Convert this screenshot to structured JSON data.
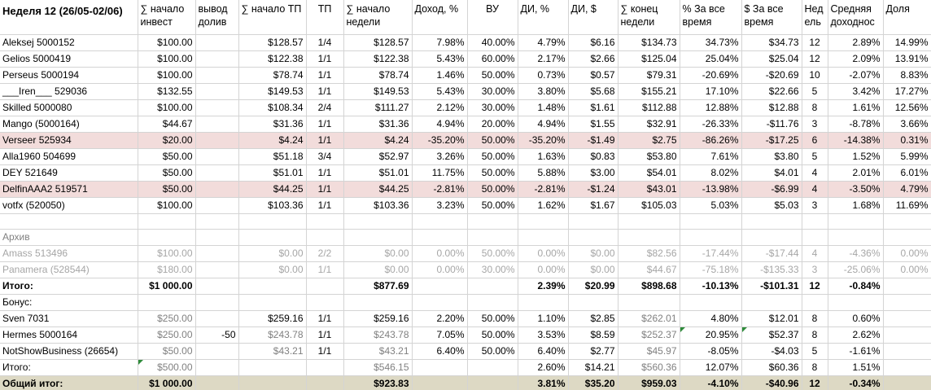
{
  "headers": [
    "Неделя 12 (26/05-02/06)",
    "∑ начало инвест",
    "вывод долив",
    "∑ начало ТП",
    "ТП",
    "∑ начало недели",
    "Доход, %",
    "ВУ",
    "ДИ, %",
    "ДИ, $",
    "∑ конец недели",
    "% За все время",
    "$ За все время",
    "Нед ель",
    "Средняя доходнос",
    "Доля"
  ],
  "rows": [
    [
      "Aleksej 5000152",
      "$100.00",
      "",
      "$128.57",
      "1/4",
      "$128.57",
      "7.98%",
      "40.00%",
      "4.79%",
      "$6.16",
      "$134.73",
      "34.73%",
      "$34.73",
      "12",
      "2.89%",
      "14.99%"
    ],
    [
      "Gelios 5000419",
      "$100.00",
      "",
      "$122.38",
      "1/1",
      "$122.38",
      "5.43%",
      "60.00%",
      "2.17%",
      "$2.66",
      "$125.04",
      "25.04%",
      "$25.04",
      "12",
      "2.09%",
      "13.91%"
    ],
    [
      "Perseus 5000194",
      "$100.00",
      "",
      "$78.74",
      "1/1",
      "$78.74",
      "1.46%",
      "50.00%",
      "0.73%",
      "$0.57",
      "$79.31",
      "-20.69%",
      "-$20.69",
      "10",
      "-2.07%",
      "8.83%"
    ],
    [
      "___Iren___ 529036",
      "$132.55",
      "",
      "$149.53",
      "1/1",
      "$149.53",
      "5.43%",
      "30.00%",
      "3.80%",
      "$5.68",
      "$155.21",
      "17.10%",
      "$22.66",
      "5",
      "3.42%",
      "17.27%"
    ],
    [
      "Skilled 5000080",
      "$100.00",
      "",
      "$108.34",
      "2/4",
      "$111.27",
      "2.12%",
      "30.00%",
      "1.48%",
      "$1.61",
      "$112.88",
      "12.88%",
      "$12.88",
      "8",
      "1.61%",
      "12.56%"
    ],
    [
      "Mango (5000164)",
      "$44.67",
      "",
      "$31.36",
      "1/1",
      "$31.36",
      "4.94%",
      "20.00%",
      "4.94%",
      "$1.55",
      "$32.91",
      "-26.33%",
      "-$11.76",
      "3",
      "-8.78%",
      "3.66%"
    ],
    [
      "Verseer 525934",
      "$20.00",
      "",
      "$4.24",
      "1/1",
      "$4.24",
      "-35.20%",
      "50.00%",
      "-35.20%",
      "-$1.49",
      "$2.75",
      "-86.26%",
      "-$17.25",
      "6",
      "-14.38%",
      "0.31%"
    ],
    [
      "Alla1960  504699",
      "$50.00",
      "",
      "$51.18",
      "3/4",
      "$52.97",
      "3.26%",
      "50.00%",
      "1.63%",
      "$0.83",
      "$53.80",
      "7.61%",
      "$3.80",
      "5",
      "1.52%",
      "5.99%"
    ],
    [
      "DEY 521649",
      "$50.00",
      "",
      "$51.01",
      "1/1",
      "$51.01",
      "11.75%",
      "50.00%",
      "5.88%",
      "$3.00",
      "$54.01",
      "8.02%",
      "$4.01",
      "4",
      "2.01%",
      "6.01%"
    ],
    [
      "DelfinAAA2 519571",
      "$50.00",
      "",
      "$44.25",
      "1/1",
      "$44.25",
      "-2.81%",
      "50.00%",
      "-2.81%",
      "-$1.24",
      "$43.01",
      "-13.98%",
      "-$6.99",
      "4",
      "-3.50%",
      "4.79%"
    ],
    [
      "votfx (520050)",
      "$100.00",
      "",
      "$103.36",
      "1/1",
      "$103.36",
      "3.23%",
      "50.00%",
      "1.62%",
      "$1.67",
      "$105.03",
      "5.03%",
      "$5.03",
      "3",
      "1.68%",
      "11.69%"
    ]
  ],
  "archive_label": "Архив",
  "archive_rows": [
    [
      "Amass 513496",
      "$100.00",
      "",
      "$0.00",
      "2/2",
      "$0.00",
      "0.00%",
      "50.00%",
      "0.00%",
      "$0.00",
      "$82.56",
      "-17.44%",
      "-$17.44",
      "4",
      "-4.36%",
      "0.00%"
    ],
    [
      "Panamera (528544)",
      "$180.00",
      "",
      "$0.00",
      "1/1",
      "$0.00",
      "0.00%",
      "30.00%",
      "0.00%",
      "$0.00",
      "$44.67",
      "-75.18%",
      "-$135.33",
      "3",
      "-25.06%",
      "0.00%"
    ]
  ],
  "total_row": [
    "Итого:",
    "$1 000.00",
    "",
    "",
    "",
    "$877.69",
    "",
    "",
    "2.39%",
    "$20.99",
    "$898.68",
    "-10.13%",
    "-$101.31",
    "12",
    "-0.84%",
    ""
  ],
  "bonus_label": "Бонус:",
  "bonus_rows": [
    [
      "Sven 7031",
      "$250.00",
      "",
      "$259.16",
      "1/1",
      "$259.16",
      "2.20%",
      "50.00%",
      "1.10%",
      "$2.85",
      "$262.01",
      "4.80%",
      "$12.01",
      "8",
      "0.60%",
      ""
    ],
    [
      "Hermes 5000164",
      "$250.00",
      "-50",
      "$243.78",
      "1/1",
      "$243.78",
      "7.05%",
      "50.00%",
      "3.53%",
      "$8.59",
      "$252.37",
      "20.95%",
      "$52.37",
      "8",
      "2.62%",
      ""
    ],
    [
      "NotShowBusiness (26654)",
      "$50.00",
      "",
      "$43.21",
      "1/1",
      "$43.21",
      "6.40%",
      "50.00%",
      "6.40%",
      "$2.77",
      "$45.97",
      "-8.05%",
      "-$4.03",
      "5",
      "-1.61%",
      ""
    ]
  ],
  "bonus_total_row": [
    "Итого:",
    "$500.00",
    "",
    "",
    "",
    "$546.15",
    "",
    "",
    "2.60%",
    "$14.21",
    "$560.36",
    "12.07%",
    "$60.36",
    "8",
    "1.51%",
    ""
  ],
  "grand_total_row": [
    "Общий итог:",
    "$1 000.00",
    "",
    "",
    "",
    "$923.83",
    "",
    "",
    "3.81%",
    "$35.20",
    "$959.03",
    "-4.10%",
    "-$40.96",
    "12",
    "-0.34%",
    ""
  ],
  "pink_rows": [
    6,
    9
  ],
  "colors": {
    "pink_row": "#f2dcdb",
    "grand_total_bg": "#ddd9c4",
    "gray_text": "#a6a6a6",
    "comment_marker": "#2e8b3a"
  }
}
